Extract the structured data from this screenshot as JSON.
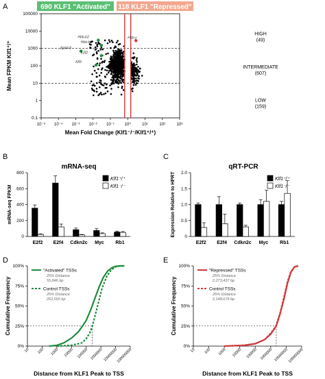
{
  "colors": {
    "green": "#1e8a3c",
    "red": "#d0383a",
    "green_banner": "#5cbf74",
    "red_banner": "#f2a88f",
    "black": "#000000",
    "gray": "#888888"
  },
  "chart_data": [
    {
      "panel": "A",
      "type": "scatter",
      "banner_activated": "690 KLF1 \"Activated\"",
      "banner_repressed": "118 KLF1 \"Repressed\"",
      "xlabel": "Mean Fold Change (Klf1⁻/⁻/Klf1⁺/⁺)",
      "ylabel": "Mean FPKM Klf1⁺/⁺",
      "x_scale": "log",
      "y_scale": "log",
      "xlim": [
        1e-05,
        1000
      ],
      "ylim": [
        0.1,
        100000
      ],
      "x_ticks": [
        "10⁻⁵",
        "10⁻⁴",
        "10⁻³",
        "10⁻²",
        "10⁻¹",
        "10⁰",
        "10¹",
        "10²",
        "10³"
      ],
      "y_ticks": [
        "0.1",
        "1",
        "10",
        "100",
        "1000",
        "10000",
        "100000"
      ],
      "thresholds_y": [
        1000,
        10
      ],
      "vertical_lines_x": [
        0.667,
        1.5
      ],
      "tiers": [
        {
          "label": "HIGH",
          "count": "(49)"
        },
        {
          "label": "INTERMEDIATE",
          "count": "(607)"
        },
        {
          "label": "LOW",
          "count": "(159)"
        }
      ],
      "highlighted_genes": [
        {
          "name": "Hbb-b2",
          "x": 0.02,
          "y": 3000,
          "color": "green"
        },
        {
          "name": "Hbb-b1",
          "x": 0.03,
          "y": 1500,
          "color": "green"
        },
        {
          "name": "Epb4.9",
          "x": 0.002,
          "y": 700,
          "color": "green"
        },
        {
          "name": "E2f2",
          "x": 0.03,
          "y": 380,
          "color": "green"
        },
        {
          "name": "Klf3",
          "x": 0.015,
          "y": 110,
          "color": "green"
        },
        {
          "name": "Hbb-y",
          "x": 3,
          "y": 2800,
          "color": "red"
        }
      ]
    },
    {
      "panel": "B",
      "type": "bar",
      "title": "mRNA-seq",
      "ylabel": "mRNA-seq FPKM",
      "ylim": [
        0,
        800
      ],
      "y_ticks": [
        "0",
        "200",
        "400",
        "600",
        "800"
      ],
      "categories": [
        "E2f2",
        "E2f4",
        "Cdkn2c",
        "Myc",
        "Rb1"
      ],
      "series": [
        {
          "name": "Klf1⁺/⁺",
          "values": [
            355,
            670,
            85,
            75,
            55
          ],
          "errors": [
            40,
            90,
            20,
            22,
            12
          ],
          "fill": "black"
        },
        {
          "name": "Klf1⁻/⁻",
          "values": [
            25,
            120,
            20,
            35,
            50
          ],
          "errors": [
            8,
            35,
            5,
            10,
            12
          ],
          "fill": "white"
        }
      ]
    },
    {
      "panel": "C",
      "type": "bar",
      "title": "qRT-PCR",
      "ylabel": "Expression Relative to HPRT",
      "ylim": [
        0,
        2.0
      ],
      "y_ticks": [
        "0",
        "0.5",
        "1.0",
        "1.5",
        "2.0"
      ],
      "categories": [
        "E2f2",
        "E2f4",
        "Cdkn2c",
        "Myc",
        "Rb1"
      ],
      "series": [
        {
          "name": "Klf1⁺/⁺",
          "values": [
            1.0,
            1.0,
            1.0,
            1.0,
            1.0
          ],
          "errors": [
            0.05,
            0.25,
            0.05,
            0.15,
            0.1
          ],
          "fill": "black"
        },
        {
          "name": "Klf1⁻/⁻",
          "values": [
            0.28,
            0.4,
            0.3,
            1.1,
            1.35
          ],
          "errors": [
            0.15,
            0.3,
            0.05,
            0.35,
            0.4
          ],
          "fill": "white"
        }
      ]
    },
    {
      "panel": "D",
      "type": "line",
      "ylabel": "Cumulative Frequency",
      "xlabel": "Distance from KLF1 Peak to TSS",
      "x_scale": "log",
      "xlim": [
        10,
        100000000
      ],
      "x_ticks": [
        "10",
        "100",
        "1000",
        "10000",
        "100000",
        "1000000",
        "10000000",
        "100000000"
      ],
      "y_ticks": [
        "0%",
        "25%",
        "50%",
        "75%",
        "100%"
      ],
      "ylim": [
        0,
        100
      ],
      "reference_y": 25,
      "reference_x": 262650,
      "series": [
        {
          "name": "\"Activated\" TSSs",
          "note1": "25% Distance",
          "note2": "55,846 bp",
          "color": "green",
          "dashed": false,
          "x": [
            300,
            1000,
            3000,
            10000,
            30000,
            55846,
            100000,
            200000,
            400000,
            800000,
            1500000,
            3000000,
            6000000,
            10000000,
            20000000,
            40000000
          ],
          "y": [
            0,
            1,
            4,
            10,
            18,
            25,
            32,
            45,
            60,
            75,
            86,
            94,
            98,
            99.5,
            100,
            100
          ]
        },
        {
          "name": "Control TSSs",
          "note1": "25% Distance",
          "note2": "262,650 bp",
          "color": "green",
          "dashed": true,
          "x": [
            1000,
            10000,
            50000,
            100000,
            180000,
            262650,
            400000,
            700000,
            1200000,
            2500000,
            5000000,
            10000000,
            20000000,
            40000000
          ],
          "y": [
            0,
            1,
            4,
            9,
            17,
            25,
            38,
            55,
            72,
            87,
            95,
            99,
            100,
            100
          ]
        }
      ]
    },
    {
      "panel": "E",
      "type": "line",
      "ylabel": "Cumulative Frequency",
      "xlabel": "Distance from KLF1 Peak to TSS",
      "x_scale": "log",
      "xlim": [
        10,
        100000000
      ],
      "x_ticks": [
        "10",
        "100",
        "1000",
        "10000",
        "100000",
        "1000000",
        "10000000",
        "100000000"
      ],
      "y_ticks": [
        "0%",
        "25%",
        "50%",
        "75%",
        "100%"
      ],
      "ylim": [
        0,
        100
      ],
      "reference_y": 25,
      "reference_x": 2273437,
      "series": [
        {
          "name": "\"Repressed\" TSSs",
          "note1": "25% Distance",
          "note2": "2,273,437 bp",
          "color": "red",
          "dashed": false,
          "x": [
            1000,
            20000,
            100000,
            400000,
            1000000,
            2273437,
            4000000,
            7000000,
            12000000,
            20000000,
            35000000,
            60000000
          ],
          "y": [
            0,
            1,
            3,
            8,
            15,
            25,
            40,
            58,
            78,
            92,
            99,
            100
          ]
        },
        {
          "name": "Control TSSs",
          "note1": "25% Distance",
          "note2": "2,148,679 bp",
          "color": "red",
          "dashed": true,
          "x": [
            1000,
            20000,
            100000,
            400000,
            1000000,
            2148679,
            4000000,
            7000000,
            12000000,
            20000000,
            35000000,
            60000000
          ],
          "y": [
            0,
            1,
            3,
            8,
            16,
            25,
            41,
            60,
            80,
            93,
            99,
            100
          ]
        }
      ]
    }
  ],
  "panel_letters": [
    "A",
    "B",
    "C",
    "D",
    "E"
  ],
  "klf_plus": "Klf1⁺/⁺",
  "klf_minus": "Klf1⁻/⁻"
}
